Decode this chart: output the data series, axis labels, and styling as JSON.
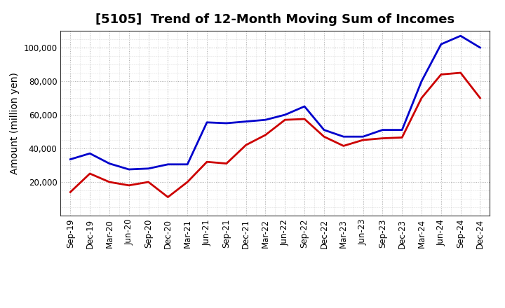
{
  "title": "[5105]  Trend of 12-Month Moving Sum of Incomes",
  "ylabel": "Amount (million yen)",
  "background_color": "#ffffff",
  "plot_background": "#ffffff",
  "grid_color": "#888888",
  "labels": [
    "Sep-19",
    "Dec-19",
    "Mar-20",
    "Jun-20",
    "Sep-20",
    "Dec-20",
    "Mar-21",
    "Jun-21",
    "Sep-21",
    "Dec-21",
    "Mar-22",
    "Jun-22",
    "Sep-22",
    "Dec-22",
    "Mar-23",
    "Jun-23",
    "Sep-23",
    "Dec-23",
    "Mar-24",
    "Jun-24",
    "Sep-24",
    "Dec-24"
  ],
  "ordinary_income": [
    33500,
    37000,
    31000,
    27500,
    28000,
    30500,
    30500,
    55500,
    55000,
    56000,
    57000,
    60000,
    65000,
    51000,
    47000,
    47000,
    51000,
    51000,
    80000,
    102000,
    107000,
    100000
  ],
  "net_income": [
    14000,
    25000,
    20000,
    18000,
    20000,
    11000,
    20000,
    32000,
    31000,
    42000,
    48000,
    57000,
    57500,
    47000,
    41500,
    45000,
    46000,
    46500,
    70000,
    84000,
    85000,
    70000
  ],
  "ordinary_color": "#0000cc",
  "net_color": "#cc0000",
  "line_width": 2.0,
  "ylim_min": 0,
  "ylim_max": 110000,
  "ytick_values": [
    20000,
    40000,
    60000,
    80000,
    100000
  ],
  "title_fontsize": 13,
  "axis_fontsize": 10,
  "tick_fontsize": 8.5
}
